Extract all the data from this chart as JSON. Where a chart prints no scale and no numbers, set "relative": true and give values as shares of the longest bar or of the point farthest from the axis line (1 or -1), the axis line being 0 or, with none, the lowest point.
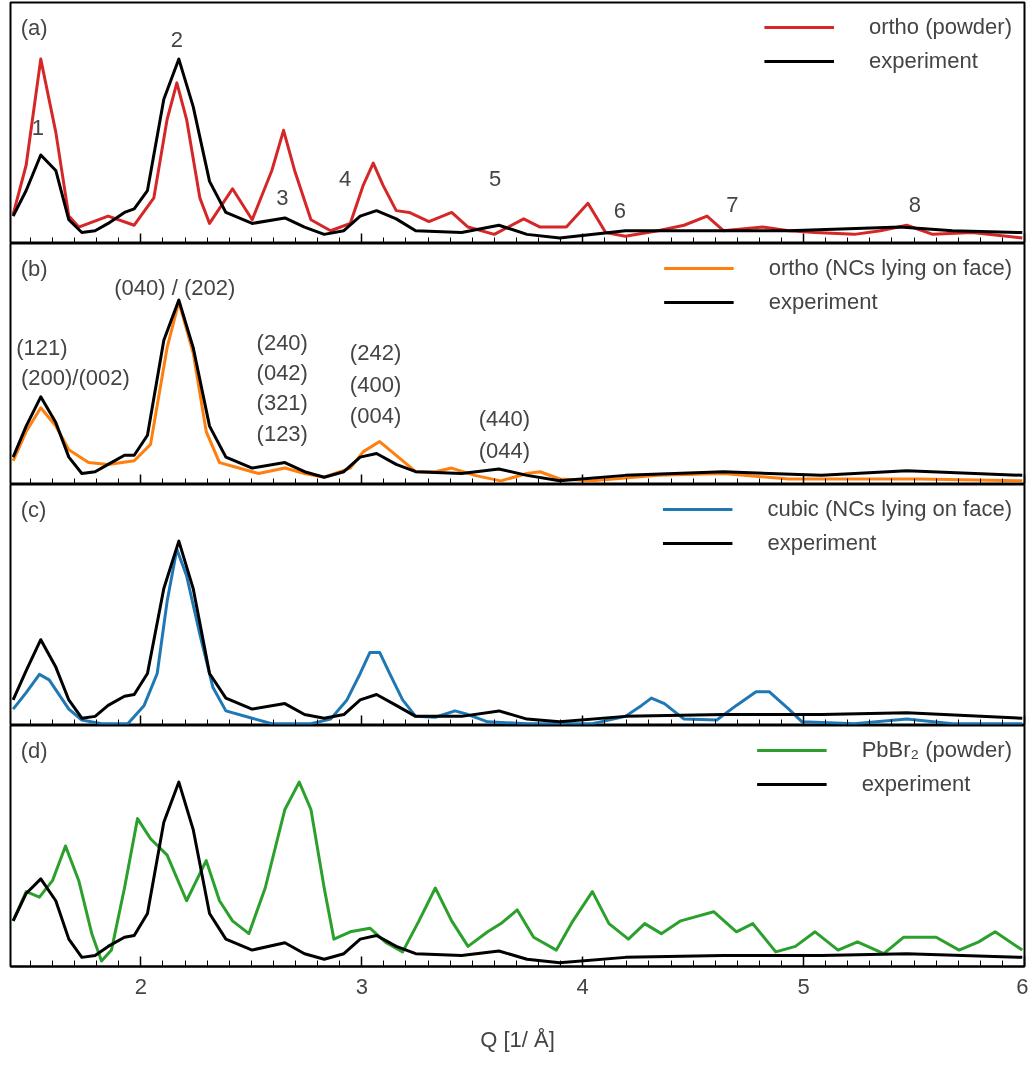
{
  "chart_data": [
    {
      "type": "line",
      "relative": true,
      "xlim": [
        1.41,
        6
      ],
      "xticks": [
        2,
        3,
        4,
        5,
        6
      ],
      "tick_labels": false,
      "legend": "top right",
      "annotations": [
        "(a)",
        "1",
        "2",
        "3",
        "4",
        "5",
        "6",
        "7",
        "8"
      ],
      "series": [
        {
          "name": "ortho (powder)",
          "color": "#d62728",
          "x": [
            1.422,
            1.481,
            1.547,
            1.615,
            1.674,
            1.719,
            1.852,
            1.97,
            2.059,
            2.119,
            2.163,
            2.207,
            2.267,
            2.311,
            2.415,
            2.504,
            2.593,
            2.646,
            2.696,
            2.77,
            2.859,
            2.948,
            3.007,
            3.052,
            3.096,
            3.156,
            3.215,
            3.304,
            3.407,
            3.481,
            3.6,
            3.733,
            3.807,
            3.926,
            4.024,
            4.104,
            4.193,
            4.341,
            4.459,
            4.563,
            4.637,
            4.815,
            4.933,
            5.052,
            5.23,
            5.348,
            5.467,
            5.585,
            5.763,
            5.99
          ],
          "values": [
            0.15,
            0.42,
            1,
            0.6,
            0.14,
            0.08,
            0.14,
            0.09,
            0.24,
            0.67,
            0.87,
            0.67,
            0.24,
            0.1,
            0.29,
            0.12,
            0.39,
            0.61,
            0.39,
            0.12,
            0.06,
            0.1,
            0.31,
            0.43,
            0.31,
            0.17,
            0.16,
            0.11,
            0.16,
            0.08,
            0.04,
            0.125,
            0.08,
            0.08,
            0.21,
            0.05,
            0.03,
            0.06,
            0.09,
            0.14,
            0.06,
            0.08,
            0.06,
            0.05,
            0.04,
            0.06,
            0.09,
            0.04,
            0.05,
            0.02
          ]
        },
        {
          "name": "experiment",
          "color": "#000000",
          "x": [
            1.422,
            1.481,
            1.547,
            1.615,
            1.674,
            1.733,
            1.793,
            1.852,
            1.926,
            1.97,
            2.03,
            2.104,
            2.172,
            2.237,
            2.311,
            2.385,
            2.504,
            2.652,
            2.741,
            2.83,
            2.919,
            2.993,
            3.067,
            3.156,
            3.244,
            3.452,
            3.621,
            3.748,
            3.896,
            4.193,
            4.637,
            4.933,
            5.437,
            5.674,
            5.99
          ],
          "values": [
            0.14,
            0.28,
            0.475,
            0.39,
            0.12,
            0.05,
            0.06,
            0.1,
            0.16,
            0.18,
            0.28,
            0.78,
            1,
            0.74,
            0.33,
            0.16,
            0.1,
            0.13,
            0.08,
            0.04,
            0.06,
            0.14,
            0.17,
            0.125,
            0.06,
            0.05,
            0.09,
            0.04,
            0.02,
            0.06,
            0.06,
            0.06,
            0.08,
            0.06,
            0.05
          ]
        }
      ]
    },
    {
      "type": "line",
      "relative": true,
      "xlim": [
        1.41,
        6
      ],
      "xticks": [
        2,
        3,
        4,
        5,
        6
      ],
      "tick_labels": false,
      "legend": "top right",
      "annotations": [
        "(b)",
        "(040) / (202)",
        "(121)",
        "(200)/(002)",
        "(240)",
        "(042)",
        "(321)",
        "(123)",
        "(242)",
        "(400)",
        "(004)",
        "(440)",
        "(044)"
      ],
      "series": [
        {
          "name": "ortho (NCs lying on face)",
          "color": "#ff7f0e",
          "x": [
            1.422,
            1.481,
            1.547,
            1.615,
            1.674,
            1.763,
            1.852,
            1.97,
            2.044,
            2.119,
            2.172,
            2.237,
            2.296,
            2.356,
            2.444,
            2.533,
            2.652,
            2.741,
            2.83,
            2.948,
            3.007,
            3.081,
            3.156,
            3.244,
            3.333,
            3.407,
            3.511,
            3.63,
            3.748,
            3.807,
            3.896,
            4.044,
            4.341,
            4.637,
            4.933,
            5.526,
            5.99
          ],
          "values": [
            0.12,
            0.28,
            0.41,
            0.31,
            0.18,
            0.11,
            0.1,
            0.12,
            0.21,
            0.74,
            0.99,
            0.71,
            0.28,
            0.11,
            0.08,
            0.05,
            0.08,
            0.05,
            0.03,
            0.08,
            0.17,
            0.225,
            0.15,
            0.06,
            0.06,
            0.08,
            0.04,
            0.01,
            0.05,
            0.06,
            0.02,
            0.01,
            0.04,
            0.05,
            0.02,
            0.02,
            0.01
          ]
        },
        {
          "name": "experiment",
          "color": "#000000",
          "x": [
            1.422,
            1.481,
            1.547,
            1.615,
            1.674,
            1.733,
            1.793,
            1.852,
            1.926,
            1.97,
            2.03,
            2.104,
            2.172,
            2.237,
            2.311,
            2.385,
            2.504,
            2.652,
            2.741,
            2.83,
            2.919,
            2.993,
            3.067,
            3.156,
            3.244,
            3.452,
            3.621,
            3.748,
            3.896,
            4.193,
            4.637,
            5.081,
            5.467,
            5.99
          ],
          "values": [
            0.14,
            0.31,
            0.47,
            0.33,
            0.14,
            0.05,
            0.06,
            0.1,
            0.15,
            0.15,
            0.26,
            0.78,
            1,
            0.74,
            0.31,
            0.14,
            0.08,
            0.11,
            0.06,
            0.03,
            0.06,
            0.14,
            0.16,
            0.1,
            0.06,
            0.05,
            0.075,
            0.04,
            0.01,
            0.04,
            0.06,
            0.04,
            0.065,
            0.04
          ]
        }
      ]
    },
    {
      "type": "line",
      "relative": true,
      "xlim": [
        1.41,
        6
      ],
      "xticks": [
        2,
        3,
        4,
        5,
        6
      ],
      "tick_labels": false,
      "legend": "top right",
      "annotations": [
        "(c)"
      ],
      "series": [
        {
          "name": "cubic (NCs lying on face)",
          "color": "#1f77b4",
          "x": [
            1.422,
            1.481,
            1.541,
            1.585,
            1.674,
            1.733,
            1.822,
            1.941,
            2.015,
            2.074,
            2.119,
            2.163,
            2.207,
            2.267,
            2.326,
            2.385,
            2.504,
            2.593,
            2.77,
            2.859,
            2.933,
            2.993,
            3.037,
            3.081,
            3.126,
            3.185,
            3.244,
            3.333,
            3.422,
            3.481,
            3.57,
            3.748,
            4.044,
            4.193,
            4.267,
            4.311,
            4.37,
            4.459,
            4.607,
            4.696,
            4.785,
            4.844,
            4.933,
            4.993,
            5.23,
            5.467,
            5.674,
            5.99
          ],
          "values": [
            0.08,
            0.17,
            0.27,
            0.24,
            0.08,
            0.02,
            0,
            0,
            0.1,
            0.275,
            0.67,
            0.955,
            0.81,
            0.49,
            0.2,
            0.07,
            0.03,
            0,
            0,
            0.025,
            0.13,
            0.275,
            0.39,
            0.39,
            0.275,
            0.13,
            0.04,
            0.035,
            0.07,
            0.05,
            0.01,
            0,
            0,
            0.04,
            0.1,
            0.14,
            0.11,
            0.025,
            0.02,
            0.1,
            0.175,
            0.175,
            0.08,
            0.01,
            0,
            0.025,
            0,
            0
          ]
        },
        {
          "name": "experiment",
          "color": "#000000",
          "x": [
            1.422,
            1.481,
            1.547,
            1.615,
            1.674,
            1.733,
            1.793,
            1.852,
            1.926,
            1.97,
            2.03,
            2.104,
            2.172,
            2.237,
            2.311,
            2.385,
            2.504,
            2.652,
            2.741,
            2.83,
            2.919,
            2.993,
            3.067,
            3.156,
            3.244,
            3.452,
            3.621,
            3.748,
            3.896,
            4.193,
            4.637,
            5.081,
            5.467,
            5.99
          ],
          "values": [
            0.13,
            0.29,
            0.46,
            0.31,
            0.13,
            0.03,
            0.04,
            0.1,
            0.15,
            0.16,
            0.275,
            0.74,
            1,
            0.74,
            0.275,
            0.14,
            0.08,
            0.11,
            0.05,
            0.03,
            0.05,
            0.13,
            0.16,
            0.1,
            0.04,
            0.04,
            0.07,
            0.025,
            0.01,
            0.04,
            0.05,
            0.05,
            0.06,
            0.03
          ]
        }
      ]
    },
    {
      "type": "line",
      "relative": true,
      "xlim": [
        1.41,
        6
      ],
      "xticks": [
        2,
        3,
        4,
        5,
        6
      ],
      "tick_labels": "x",
      "legend": "top right",
      "xlabel": "Q [1/ Å]",
      "annotations": [
        "(d)"
      ],
      "series": [
        {
          "name": "PbBr₂ (powder)",
          "color": "#2ca02c",
          "x": [
            1.422,
            1.481,
            1.541,
            1.6,
            1.659,
            1.719,
            1.778,
            1.822,
            1.867,
            1.926,
            1.985,
            2.044,
            2.119,
            2.207,
            2.296,
            2.356,
            2.415,
            2.489,
            2.563,
            2.652,
            2.717,
            2.77,
            2.83,
            2.874,
            2.948,
            3.037,
            3.111,
            3.185,
            3.259,
            3.333,
            3.407,
            3.481,
            3.57,
            3.63,
            3.704,
            3.778,
            3.881,
            3.956,
            4.044,
            4.119,
            4.207,
            4.281,
            4.356,
            4.444,
            4.593,
            4.696,
            4.77,
            4.874,
            4.963,
            5.052,
            5.156,
            5.244,
            5.363,
            5.452,
            5.526,
            5.6,
            5.704,
            5.793,
            5.867,
            5.99
          ],
          "values": [
            0.24,
            0.4,
            0.37,
            0.46,
            0.65,
            0.46,
            0.17,
            0.02,
            0.08,
            0.42,
            0.8,
            0.69,
            0.6,
            0.35,
            0.57,
            0.35,
            0.24,
            0.17,
            0.42,
            0.85,
            1,
            0.85,
            0.42,
            0.14,
            0.18,
            0.2,
            0.12,
            0.07,
            0.24,
            0.42,
            0.24,
            0.1,
            0.18,
            0.225,
            0.3,
            0.15,
            0.08,
            0.24,
            0.4,
            0.225,
            0.14,
            0.225,
            0.17,
            0.24,
            0.29,
            0.18,
            0.225,
            0.07,
            0.1,
            0.18,
            0.08,
            0.125,
            0.06,
            0.15,
            0.15,
            0.15,
            0.08,
            0.125,
            0.18,
            0.08
          ]
        },
        {
          "name": "experiment",
          "color": "#000000",
          "x": [
            1.422,
            1.481,
            1.547,
            1.615,
            1.674,
            1.733,
            1.793,
            1.852,
            1.926,
            1.97,
            2.03,
            2.104,
            2.172,
            2.237,
            2.311,
            2.385,
            2.504,
            2.652,
            2.741,
            2.83,
            2.919,
            2.993,
            3.067,
            3.156,
            3.244,
            3.452,
            3.621,
            3.748,
            3.896,
            4.193,
            4.637,
            5.081,
            5.467,
            5.99
          ],
          "values": [
            0.24,
            0.39,
            0.47,
            0.35,
            0.14,
            0.04,
            0.05,
            0.1,
            0.15,
            0.16,
            0.28,
            0.78,
            1,
            0.74,
            0.28,
            0.14,
            0.08,
            0.12,
            0.06,
            0.03,
            0.06,
            0.14,
            0.16,
            0.1,
            0.06,
            0.05,
            0.075,
            0.03,
            0.01,
            0.04,
            0.05,
            0.05,
            0.06,
            0.04
          ]
        }
      ]
    }
  ]
}
